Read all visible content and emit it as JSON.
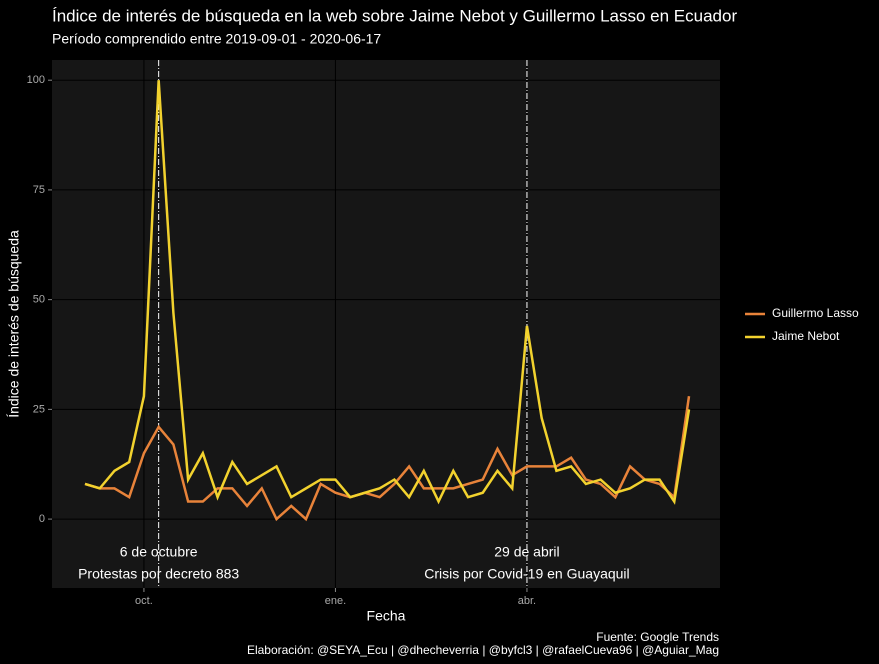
{
  "chart_data": {
    "type": "line",
    "title": "Índice de interés de búsqueda en la web sobre Jaime Nebot y Guillermo Lasso en Ecuador",
    "subtitle": "Período comprendido entre 2019-09-01 - 2020-06-17",
    "xlabel": "Fecha",
    "ylabel": "Índice de interés de búsqueda",
    "categories": [
      null,
      null,
      null,
      null,
      "oct.",
      null,
      null,
      null,
      null,
      null,
      null,
      null,
      null,
      null,
      null,
      null,
      null,
      "ene.",
      null,
      null,
      null,
      null,
      null,
      null,
      null,
      null,
      null,
      null,
      null,
      null,
      "abr.",
      null,
      null,
      null,
      null,
      null,
      null,
      null,
      null,
      null,
      null,
      null
    ],
    "series": [
      {
        "name": "Guillermo Lasso",
        "color": "#e8833a",
        "values": [
          8,
          7,
          7,
          5,
          15,
          21,
          17,
          4,
          4,
          7,
          7,
          3,
          7,
          0,
          3,
          0,
          8,
          6,
          5,
          6,
          5,
          8,
          12,
          7,
          7,
          7,
          8,
          9,
          16,
          10,
          12,
          12,
          12,
          14,
          9,
          8,
          5,
          12,
          9,
          8,
          5,
          28
        ]
      },
      {
        "name": "Jaime Nebot",
        "color": "#f2d22e",
        "values": [
          8,
          7,
          11,
          13,
          28,
          100,
          47,
          9,
          15,
          5,
          13,
          8,
          10,
          12,
          5,
          7,
          9,
          9,
          5,
          6,
          7,
          9,
          5,
          11,
          4,
          11,
          5,
          6,
          11,
          7,
          44,
          23,
          11,
          12,
          8,
          9,
          6,
          7,
          9,
          9,
          4,
          25
        ]
      }
    ],
    "annotations": [
      {
        "title": "6 de octubre",
        "text": "Protestas por decreto 883"
      },
      {
        "title": "29 de abril",
        "text": "Crisis por Covid-19 en Guayaquil"
      }
    ],
    "ylim": [
      -15.7,
      104.6
    ],
    "yticks": [
      0,
      25,
      50,
      75,
      100
    ],
    "grid": true,
    "legend": "right",
    "caption": [
      "Fuente: Google Trends",
      "Elaboración: @SEYA_Ecu | @dhecheverria | @byfcl3 | @rafaelCueva96 | @Aguiar_Mag"
    ]
  }
}
